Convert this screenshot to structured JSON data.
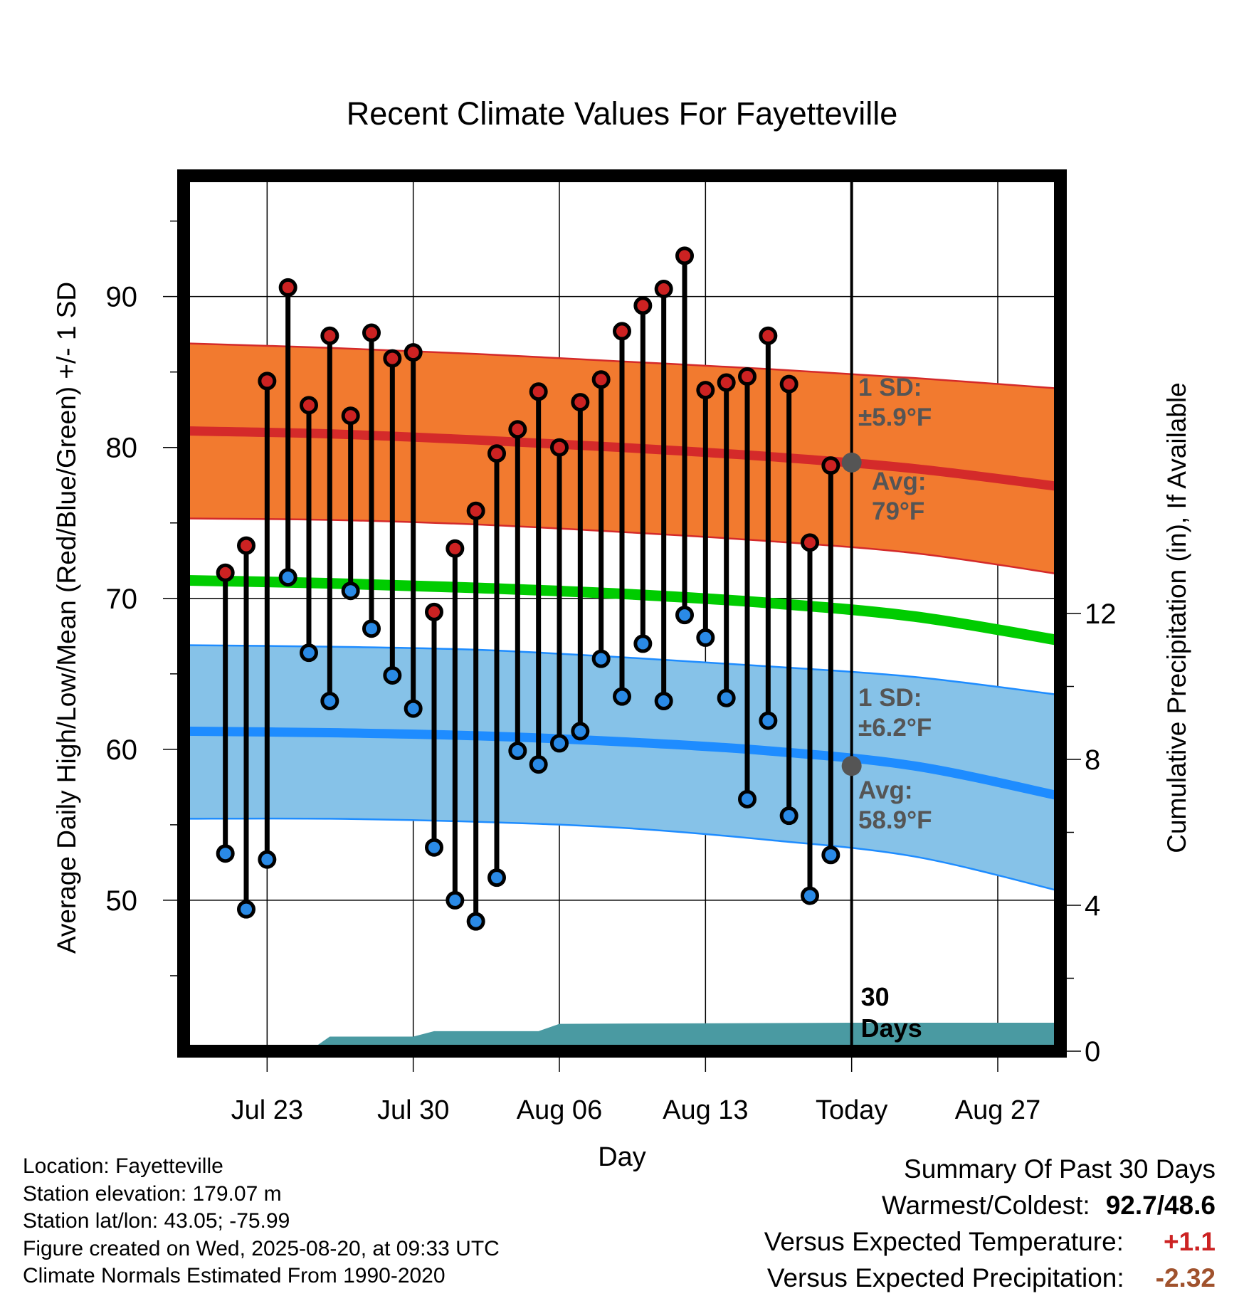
{
  "chart_data": {
    "type": "line",
    "title": "Recent Climate Values For Fayetteville",
    "xlabel": "Day",
    "ylabel": "Average Daily High/Low/Mean (Red/Blue/Green) +/- 1 SD",
    "y2label": "Cumulative Precipitation (in), If Available",
    "xlim": [
      "2025-07-19",
      "2025-08-30"
    ],
    "ylim": [
      40,
      98
    ],
    "y2lim": [
      0,
      24
    ],
    "x_tick_dates": [
      "2025-07-23",
      "2025-07-30",
      "2025-08-06",
      "2025-08-13",
      "2025-08-20",
      "2025-08-27"
    ],
    "x_tick_labels": [
      "Jul 23",
      "Jul 30",
      "Aug 06",
      "Aug 13",
      "Today",
      "Aug 27"
    ],
    "y_ticks": [
      50,
      60,
      70,
      80,
      90
    ],
    "y_tick_labels": [
      "50",
      "60",
      "70",
      "80",
      "90"
    ],
    "y2_ticks": [
      0,
      4,
      8,
      12
    ],
    "y2_tick_labels": [
      "0",
      "4",
      "8",
      "12"
    ],
    "grid": true,
    "today": "2025-08-20",
    "today_label": "30\nDays",
    "colors": {
      "high_line": "#d42a2a",
      "high_band": "#f27a2f",
      "low_line": "#1e8cff",
      "low_band": "#86c2e8",
      "mean_line": "#00cc00",
      "precip_fill": "#4a9aa2",
      "high_marker": "#cc2222",
      "low_marker": "#2a8ae6",
      "annotation_text": "#555555"
    },
    "normals": {
      "dates": [
        "2025-07-19",
        "2025-07-26",
        "2025-08-02",
        "2025-08-09",
        "2025-08-16",
        "2025-08-23",
        "2025-08-30"
      ],
      "high_avg": [
        81.1,
        80.9,
        80.5,
        80.0,
        79.4,
        78.6,
        77.4
      ],
      "high_upper": [
        86.9,
        86.6,
        86.2,
        85.7,
        85.2,
        84.6,
        83.9
      ],
      "high_lower": [
        75.3,
        75.2,
        74.9,
        74.4,
        73.8,
        73.0,
        71.6
      ],
      "mean_avg": [
        71.2,
        71.0,
        70.7,
        70.3,
        69.7,
        68.8,
        67.2
      ],
      "low_avg": [
        61.2,
        61.1,
        60.9,
        60.5,
        59.9,
        58.9,
        56.9
      ],
      "low_upper": [
        66.9,
        66.8,
        66.6,
        66.1,
        65.5,
        64.8,
        63.6
      ],
      "low_lower": [
        55.4,
        55.4,
        55.2,
        54.8,
        54.0,
        52.9,
        50.6
      ]
    },
    "series": [
      {
        "name": "High",
        "x": [
          "2025-07-21",
          "2025-07-22",
          "2025-07-23",
          "2025-07-24",
          "2025-07-25",
          "2025-07-26",
          "2025-07-27",
          "2025-07-28",
          "2025-07-29",
          "2025-07-30",
          "2025-07-31",
          "2025-08-01",
          "2025-08-02",
          "2025-08-03",
          "2025-08-04",
          "2025-08-05",
          "2025-08-06",
          "2025-08-07",
          "2025-08-08",
          "2025-08-09",
          "2025-08-10",
          "2025-08-11",
          "2025-08-12",
          "2025-08-13",
          "2025-08-14",
          "2025-08-15",
          "2025-08-16",
          "2025-08-17",
          "2025-08-18",
          "2025-08-19"
        ],
        "values": [
          71.7,
          73.5,
          84.4,
          90.6,
          82.8,
          87.4,
          82.1,
          87.6,
          85.9,
          86.3,
          69.1,
          73.3,
          75.8,
          79.6,
          81.2,
          83.7,
          80.0,
          83.0,
          84.5,
          87.7,
          89.4,
          90.5,
          92.7,
          83.8,
          84.3,
          84.7,
          87.4,
          84.2,
          73.7,
          78.8
        ]
      },
      {
        "name": "Low",
        "x": [
          "2025-07-21",
          "2025-07-22",
          "2025-07-23",
          "2025-07-24",
          "2025-07-25",
          "2025-07-26",
          "2025-07-27",
          "2025-07-28",
          "2025-07-29",
          "2025-07-30",
          "2025-07-31",
          "2025-08-01",
          "2025-08-02",
          "2025-08-03",
          "2025-08-04",
          "2025-08-05",
          "2025-08-06",
          "2025-08-07",
          "2025-08-08",
          "2025-08-09",
          "2025-08-10",
          "2025-08-11",
          "2025-08-12",
          "2025-08-13",
          "2025-08-14",
          "2025-08-15",
          "2025-08-16",
          "2025-08-17",
          "2025-08-18",
          "2025-08-19"
        ],
        "values": [
          53.1,
          49.4,
          52.7,
          71.4,
          66.4,
          63.2,
          70.5,
          68.0,
          64.9,
          62.7,
          53.5,
          50.0,
          48.6,
          51.5,
          59.9,
          59.0,
          60.4,
          61.2,
          66.0,
          63.5,
          67.0,
          63.2,
          68.9,
          67.4,
          63.4,
          56.7,
          61.9,
          55.6,
          50.3,
          53.0
        ]
      }
    ],
    "precipitation": {
      "dates": [
        "2025-07-19",
        "2025-07-25",
        "2025-07-26",
        "2025-07-29",
        "2025-07-30",
        "2025-07-31",
        "2025-08-01",
        "2025-08-05",
        "2025-08-06",
        "2025-08-20",
        "2025-08-30"
      ],
      "values": [
        0,
        0,
        0.4,
        0.4,
        0.4,
        0.55,
        0.55,
        0.55,
        0.75,
        0.78,
        0.78
      ]
    },
    "annotations": [
      {
        "line1": "1 SD:",
        "line2": "±5.9°F"
      },
      {
        "line1": "Avg:",
        "line2": "79°F"
      },
      {
        "line1": "1 SD:",
        "line2": "±6.2°F"
      },
      {
        "line1": "Avg:",
        "line2": "58.9°F"
      }
    ],
    "today_markers": {
      "high_avg": 79.0,
      "low_avg": 58.9
    }
  },
  "footer": {
    "location": "Location: Fayetteville",
    "elevation": "Station elevation: 179.07 m",
    "latlon": "Station lat/lon: 43.05; -75.99",
    "created": "Figure created on Wed, 2025-08-20, at 09:33 UTC",
    "normals": "Climate Normals Estimated From 1990-2020"
  },
  "summary": {
    "heading": "Summary Of Past 30 Days",
    "warm_cold_label": "Warmest/Coldest:",
    "warm_cold_value": "92.7/48.6",
    "temp_label": "Versus Expected Temperature:",
    "temp_value": "+1.1",
    "temp_color": "#cc2222",
    "precip_label": "Versus Expected Precipitation:",
    "precip_value": "-2.32",
    "precip_color": "#a0522d"
  }
}
